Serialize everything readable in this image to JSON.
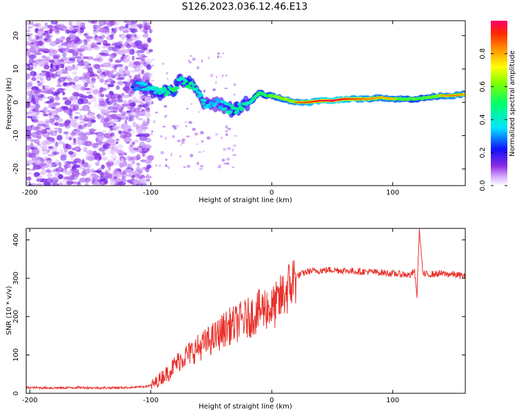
{
  "title": "S126.2023.036.12.46.E13",
  "colors": {
    "snr_line": "#e8302a",
    "axis": "#000000",
    "background": "#ffffff"
  },
  "chart_data": [
    {
      "type": "heatmap",
      "name": "spectrogram",
      "xlabel": "Height of straight line (km)",
      "ylabel": "Frequency (Hz)",
      "xlim": [
        -203,
        160
      ],
      "ylim": [
        -25,
        24.5
      ],
      "xticks": [
        -200,
        -100,
        0,
        100
      ],
      "yticks": [
        -20,
        -10,
        0,
        10,
        20
      ],
      "colorbar": {
        "label": "Normalized spectral amplitude",
        "range": [
          0.0,
          1.0
        ],
        "ticks": [
          "0.0",
          "0.2",
          "0.4",
          "0.6",
          "0.8"
        ]
      },
      "ridge": {
        "x": [
          -115,
          -108,
          -100,
          -92,
          -85,
          -80,
          -75,
          -70,
          -66,
          -62,
          -58,
          -54,
          -50,
          -45,
          -40,
          -35,
          -30,
          -25,
          -20,
          -15,
          -10,
          -5,
          0,
          10,
          20,
          30,
          40,
          50,
          60,
          70,
          80,
          90,
          100,
          110,
          120,
          130,
          140,
          150,
          160
        ],
        "freq": [
          5,
          5,
          4,
          3,
          3.5,
          4,
          7,
          6,
          5,
          3,
          1,
          -1,
          -1,
          0,
          -1,
          -2,
          -2,
          -1,
          -0.5,
          1,
          3,
          2,
          2,
          1,
          0,
          0,
          0.5,
          0.5,
          1,
          1,
          1,
          1.5,
          1,
          1,
          1,
          1.5,
          2,
          2,
          2.5
        ],
        "amplitude": [
          0.3,
          0.45,
          0.5,
          0.55,
          0.6,
          0.7,
          0.5,
          0.65,
          0.6,
          0.5,
          0.55,
          0.5,
          0.45,
          0.4,
          0.5,
          0.55,
          0.6,
          0.6,
          0.55,
          0.6,
          0.7,
          0.65,
          0.75,
          0.8,
          0.85,
          0.9,
          0.95,
          1.0,
          0.95,
          0.9,
          0.85,
          0.8,
          0.8,
          0.75,
          0.7,
          0.75,
          0.8,
          0.85,
          0.8
        ]
      },
      "noise_region": {
        "x_start": -203,
        "x_end": -100,
        "amplitude": 0.1
      }
    },
    {
      "type": "line",
      "name": "snr",
      "xlabel": "Height of straight line (km)",
      "ylabel": "SNR (10 * v/v)",
      "xlim": [
        -203,
        160
      ],
      "ylim": [
        0,
        430
      ],
      "xticks": [
        -200,
        -100,
        0,
        100
      ],
      "yticks": [
        0,
        100,
        200,
        300,
        400
      ],
      "x": [
        -203,
        -180,
        -160,
        -140,
        -120,
        -110,
        -100,
        -95,
        -90,
        -85,
        -80,
        -75,
        -70,
        -65,
        -60,
        -55,
        -50,
        -45,
        -40,
        -35,
        -30,
        -25,
        -20,
        -15,
        -10,
        -5,
        0,
        5,
        10,
        15,
        20,
        30,
        40,
        50,
        60,
        70,
        80,
        90,
        100,
        110,
        115,
        118,
        120,
        122,
        125,
        130,
        140,
        150,
        160
      ],
      "values": [
        15,
        14,
        15,
        14,
        15,
        16,
        20,
        30,
        45,
        55,
        75,
        90,
        100,
        110,
        120,
        130,
        140,
        150,
        165,
        175,
        180,
        190,
        195,
        205,
        215,
        225,
        220,
        235,
        260,
        280,
        305,
        318,
        320,
        322,
        320,
        318,
        317,
        315,
        312,
        310,
        308,
        320,
        250,
        430,
        310,
        310,
        312,
        310,
        305
      ]
    }
  ]
}
